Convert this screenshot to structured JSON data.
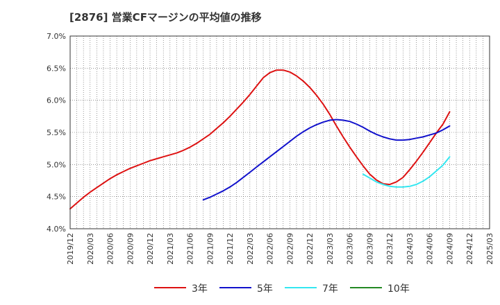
{
  "title": "[2876]  営業CFマージンの平均値の推移",
  "chart_data": {
    "type": "line",
    "title": "[2876]  営業CFマージンの平均値の推移",
    "xlabel": "",
    "ylabel": "",
    "ylim": [
      4.0,
      7.0
    ],
    "y_ticks": [
      "4.0%",
      "4.5%",
      "5.0%",
      "5.5%",
      "6.0%",
      "6.5%",
      "7.0%"
    ],
    "x_ticks": [
      "2019/12",
      "2020/03",
      "2020/06",
      "2020/09",
      "2020/12",
      "2021/03",
      "2021/06",
      "2021/09",
      "2021/12",
      "2022/03",
      "2022/06",
      "2022/09",
      "2022/12",
      "2023/03",
      "2023/06",
      "2023/09",
      "2023/12",
      "2024/03",
      "2024/06",
      "2024/09",
      "2024/12",
      "2025/03"
    ],
    "grid": true,
    "legend_position": "bottom",
    "series": [
      {
        "name": "3年",
        "color": "#dd1111",
        "x": [
          "2019/12",
          "2020/01",
          "2020/02",
          "2020/03",
          "2020/04",
          "2020/05",
          "2020/06",
          "2020/07",
          "2020/08",
          "2020/09",
          "2020/10",
          "2020/11",
          "2020/12",
          "2021/01",
          "2021/02",
          "2021/03",
          "2021/04",
          "2021/05",
          "2021/06",
          "2021/07",
          "2021/08",
          "2021/09",
          "2021/10",
          "2021/11",
          "2021/12",
          "2022/01",
          "2022/02",
          "2022/03",
          "2022/04",
          "2022/05",
          "2022/06",
          "2022/07",
          "2022/08",
          "2022/09",
          "2022/10",
          "2022/11",
          "2022/12",
          "2023/01",
          "2023/02",
          "2023/03",
          "2023/04",
          "2023/05",
          "2023/06",
          "2023/07",
          "2023/08",
          "2023/09",
          "2023/10",
          "2023/11",
          "2023/12",
          "2024/01",
          "2024/02",
          "2024/03",
          "2024/04",
          "2024/05",
          "2024/06",
          "2024/07",
          "2024/08",
          "2024/09"
        ],
        "values": [
          4.31,
          4.4,
          4.49,
          4.57,
          4.64,
          4.71,
          4.78,
          4.84,
          4.89,
          4.94,
          4.98,
          5.02,
          5.06,
          5.09,
          5.12,
          5.15,
          5.18,
          5.22,
          5.27,
          5.33,
          5.4,
          5.47,
          5.56,
          5.65,
          5.75,
          5.86,
          5.97,
          6.09,
          6.22,
          6.35,
          6.43,
          6.47,
          6.47,
          6.44,
          6.38,
          6.3,
          6.2,
          6.08,
          5.94,
          5.78,
          5.6,
          5.43,
          5.27,
          5.12,
          4.98,
          4.85,
          4.76,
          4.7,
          4.69,
          4.73,
          4.8,
          4.92,
          5.05,
          5.19,
          5.34,
          5.49,
          5.63,
          5.82
        ]
      },
      {
        "name": "5年",
        "color": "#1111cc",
        "x": [
          "2021/08",
          "2021/09",
          "2021/10",
          "2021/11",
          "2021/12",
          "2022/01",
          "2022/02",
          "2022/03",
          "2022/04",
          "2022/05",
          "2022/06",
          "2022/07",
          "2022/08",
          "2022/09",
          "2022/10",
          "2022/11",
          "2022/12",
          "2023/01",
          "2023/02",
          "2023/03",
          "2023/04",
          "2023/05",
          "2023/06",
          "2023/07",
          "2023/08",
          "2023/09",
          "2023/10",
          "2023/11",
          "2023/12",
          "2024/01",
          "2024/02",
          "2024/03",
          "2024/04",
          "2024/05",
          "2024/06",
          "2024/07",
          "2024/08",
          "2024/09"
        ],
        "values": [
          4.45,
          4.49,
          4.54,
          4.59,
          4.65,
          4.72,
          4.8,
          4.88,
          4.96,
          5.04,
          5.12,
          5.2,
          5.28,
          5.36,
          5.44,
          5.51,
          5.57,
          5.62,
          5.66,
          5.69,
          5.7,
          5.69,
          5.67,
          5.63,
          5.58,
          5.52,
          5.47,
          5.43,
          5.4,
          5.38,
          5.38,
          5.39,
          5.41,
          5.43,
          5.46,
          5.49,
          5.54,
          5.6
        ]
      },
      {
        "name": "7年",
        "color": "#33e6f0",
        "x": [
          "2023/08",
          "2023/09",
          "2023/10",
          "2023/11",
          "2023/12",
          "2024/01",
          "2024/02",
          "2024/03",
          "2024/04",
          "2024/05",
          "2024/06",
          "2024/07",
          "2024/08",
          "2024/09"
        ],
        "values": [
          4.85,
          4.79,
          4.73,
          4.69,
          4.66,
          4.65,
          4.65,
          4.66,
          4.69,
          4.74,
          4.81,
          4.9,
          4.99,
          5.12
        ]
      },
      {
        "name": "10年",
        "color": "#228822",
        "x": [],
        "values": []
      }
    ]
  }
}
